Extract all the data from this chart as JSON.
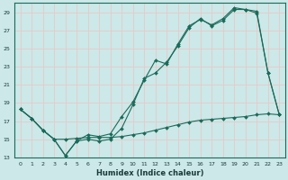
{
  "xlabel": "Humidex (Indice chaleur)",
  "background_color": "#cce8e8",
  "grid_color": "#e8c8c8",
  "line_color": "#1a6b5a",
  "xlim": [
    -0.5,
    23.5
  ],
  "ylim": [
    13,
    30
  ],
  "xticks": [
    0,
    1,
    2,
    3,
    4,
    5,
    6,
    7,
    8,
    9,
    10,
    11,
    12,
    13,
    14,
    15,
    16,
    17,
    18,
    19,
    20,
    21,
    22,
    23
  ],
  "yticks": [
    13,
    15,
    17,
    19,
    21,
    23,
    25,
    27,
    29
  ],
  "line1_x": [
    0,
    1,
    2,
    3,
    4,
    5,
    6,
    7,
    8,
    9,
    10,
    11,
    12,
    13,
    14,
    15,
    16,
    17,
    18,
    19,
    20,
    21,
    22,
    23
  ],
  "line1_y": [
    18.3,
    17.3,
    16.0,
    15.0,
    13.2,
    14.8,
    15.0,
    14.8,
    15.0,
    16.2,
    18.8,
    21.7,
    22.3,
    23.5,
    25.3,
    27.3,
    28.3,
    27.5,
    28.1,
    29.3,
    29.3,
    28.9,
    22.3,
    17.7
  ],
  "line2_x": [
    0,
    1,
    2,
    3,
    4,
    5,
    6,
    7,
    8,
    9,
    10,
    11,
    12,
    13,
    14,
    15,
    16,
    17,
    18,
    19,
    20,
    21,
    22,
    23
  ],
  "line2_y": [
    18.3,
    17.3,
    16.0,
    15.0,
    15.0,
    15.1,
    15.2,
    15.2,
    15.2,
    15.3,
    15.5,
    15.7,
    16.0,
    16.3,
    16.6,
    16.9,
    17.1,
    17.2,
    17.3,
    17.4,
    17.5,
    17.7,
    17.8,
    17.7
  ],
  "line3_x": [
    0,
    1,
    2,
    3,
    4,
    5,
    6,
    7,
    8,
    9,
    10,
    11,
    12,
    13,
    14,
    15,
    16,
    17,
    18,
    19,
    20,
    21,
    22,
    23
  ],
  "line3_y": [
    18.3,
    17.3,
    16.0,
    15.0,
    13.2,
    14.8,
    15.5,
    15.3,
    15.6,
    17.5,
    19.1,
    21.5,
    23.7,
    23.3,
    25.5,
    27.5,
    28.2,
    27.6,
    28.3,
    29.5,
    29.3,
    29.1,
    22.3,
    17.7
  ]
}
